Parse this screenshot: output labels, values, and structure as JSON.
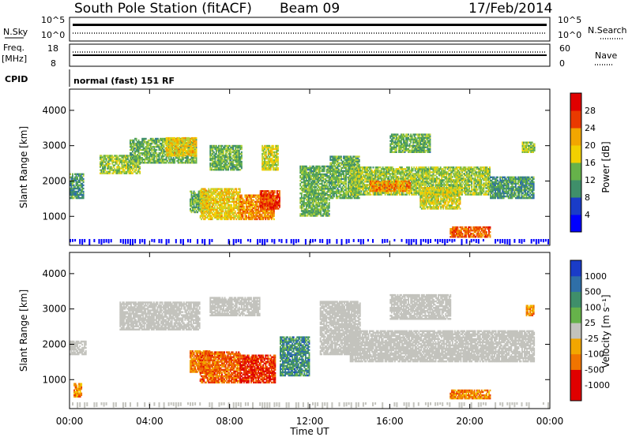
{
  "header": {
    "station": "South Pole Station (fitACF)",
    "beam": "Beam 09",
    "date": "17/Feb/2014"
  },
  "summary": {
    "nsky_label": "N.Sky",
    "nsky_ticks": [
      "10^5",
      "10^0"
    ],
    "nsearch_label": "N.Search",
    "nsearch_ticks": [
      "10^5",
      "10^0"
    ],
    "freq_label": "Freq.",
    "freq_unit": "[MHz]",
    "freq_ticks": [
      "18",
      "8"
    ],
    "nave_label": "Nave",
    "nave_ticks": [
      "60",
      "0"
    ],
    "cpid_label": "CPID",
    "cpid_value": "normal (fast) 151 RF"
  },
  "colors": {
    "scale": [
      "#0000ff",
      "#1a3cc8",
      "#2f6fa8",
      "#3f8f6a",
      "#66b24a",
      "#b8d23a",
      "#f2d000",
      "#f2a600",
      "#f07400",
      "#ea3a00",
      "#e00000"
    ],
    "gray": "#c3c3bd"
  },
  "chart_data": [
    {
      "type": "heatmap",
      "name": "power",
      "ylabel": "Slant Range [km]",
      "xlabel": "Time UT",
      "x_ticks": [
        "00:00",
        "04:00",
        "08:00",
        "12:00",
        "16:00",
        "20:00",
        "00:00"
      ],
      "y_ticks": [
        "1000",
        "2000",
        "3000",
        "4000"
      ],
      "xlim_hours": [
        0,
        24
      ],
      "ylim_km": [
        180,
        4600
      ],
      "colorbar_label": "Power [dB]",
      "colorbar_ticks": [
        "4",
        "8",
        "12",
        "16",
        "20",
        "24",
        "28"
      ],
      "clim": [
        0,
        30
      ],
      "regions": [
        {
          "t0": 0.0,
          "t1": 0.7,
          "r0": 1500,
          "r1": 2200,
          "v": 10
        },
        {
          "t0": 1.5,
          "t1": 3.5,
          "r0": 2200,
          "r1": 2700,
          "v": 14
        },
        {
          "t0": 3.0,
          "t1": 6.3,
          "r0": 2500,
          "r1": 3200,
          "v": 12
        },
        {
          "t0": 4.8,
          "t1": 6.3,
          "r0": 2700,
          "r1": 3200,
          "v": 18
        },
        {
          "t0": 6.0,
          "t1": 7.0,
          "r0": 1100,
          "r1": 1700,
          "v": 12
        },
        {
          "t0": 6.5,
          "t1": 8.5,
          "r0": 900,
          "r1": 1800,
          "v": 18
        },
        {
          "t0": 7.0,
          "t1": 8.6,
          "r0": 2300,
          "r1": 3000,
          "v": 12
        },
        {
          "t0": 8.5,
          "t1": 10.2,
          "r0": 900,
          "r1": 1600,
          "v": 22
        },
        {
          "t0": 9.5,
          "t1": 10.5,
          "r0": 1200,
          "r1": 1700,
          "v": 26
        },
        {
          "t0": 9.6,
          "t1": 10.4,
          "r0": 2300,
          "r1": 3000,
          "v": 16
        },
        {
          "t0": 11.5,
          "t1": 13.0,
          "r0": 1000,
          "r1": 2400,
          "v": 12
        },
        {
          "t0": 13.0,
          "t1": 14.5,
          "r0": 1500,
          "r1": 2700,
          "v": 12
        },
        {
          "t0": 14.0,
          "t1": 21.0,
          "r0": 1600,
          "r1": 2400,
          "v": 14
        },
        {
          "t0": 15.0,
          "t1": 17.0,
          "r0": 1700,
          "r1": 2000,
          "v": 22
        },
        {
          "t0": 16.0,
          "t1": 18.0,
          "r0": 2800,
          "r1": 3300,
          "v": 12
        },
        {
          "t0": 17.5,
          "t1": 19.5,
          "r0": 1200,
          "r1": 1800,
          "v": 16
        },
        {
          "t0": 19.0,
          "t1": 21.0,
          "r0": 400,
          "r1": 700,
          "v": 24
        },
        {
          "t0": 21.0,
          "t1": 23.2,
          "r0": 1500,
          "r1": 2100,
          "v": 10
        },
        {
          "t0": 22.6,
          "t1": 23.2,
          "r0": 2800,
          "r1": 3100,
          "v": 14
        }
      ]
    },
    {
      "type": "heatmap",
      "name": "velocity",
      "ylabel": "Slant Range [km]",
      "xlabel": "Time UT",
      "x_ticks": [
        "00:00",
        "04:00",
        "08:00",
        "12:00",
        "16:00",
        "20:00",
        "00:00"
      ],
      "y_ticks": [
        "1000",
        "2000",
        "3000",
        "4000"
      ],
      "xlim_hours": [
        0,
        24
      ],
      "ylim_km": [
        180,
        4600
      ],
      "colorbar_label": "Velocity [m s⁻¹]",
      "colorbar_ticks": [
        "1000",
        "500",
        "100",
        "25",
        "-25",
        "-100",
        "-500",
        "-1000"
      ],
      "clim": [
        0,
        30
      ],
      "regions": [
        {
          "t0": 0.0,
          "t1": 0.8,
          "r0": 1700,
          "r1": 2100,
          "v": 15,
          "gray": true
        },
        {
          "t0": 2.5,
          "t1": 6.5,
          "r0": 2400,
          "r1": 3200,
          "v": 15,
          "gray": true
        },
        {
          "t0": 0.2,
          "t1": 0.6,
          "r0": 500,
          "r1": 900,
          "v": 22
        },
        {
          "t0": 6.0,
          "t1": 7.0,
          "r0": 1200,
          "r1": 1800,
          "v": 23
        },
        {
          "t0": 6.5,
          "t1": 8.5,
          "r0": 900,
          "r1": 1800,
          "v": 24
        },
        {
          "t0": 8.5,
          "t1": 10.3,
          "r0": 900,
          "r1": 1700,
          "v": 27
        },
        {
          "t0": 7.0,
          "t1": 9.5,
          "r0": 2800,
          "r1": 3300,
          "v": 15,
          "gray": true
        },
        {
          "t0": 10.5,
          "t1": 12.0,
          "r0": 1100,
          "r1": 2200,
          "v": 9
        },
        {
          "t0": 12.5,
          "t1": 14.5,
          "r0": 1700,
          "r1": 3200,
          "v": 15,
          "gray": true
        },
        {
          "t0": 14.0,
          "t1": 23.2,
          "r0": 1500,
          "r1": 2400,
          "v": 15,
          "gray": true
        },
        {
          "t0": 16.0,
          "t1": 19.0,
          "r0": 2700,
          "r1": 3400,
          "v": 15,
          "gray": true
        },
        {
          "t0": 19.0,
          "t1": 21.0,
          "r0": 450,
          "r1": 700,
          "v": 22
        },
        {
          "t0": 22.8,
          "t1": 23.2,
          "r0": 2800,
          "r1": 3100,
          "v": 21
        }
      ]
    }
  ]
}
